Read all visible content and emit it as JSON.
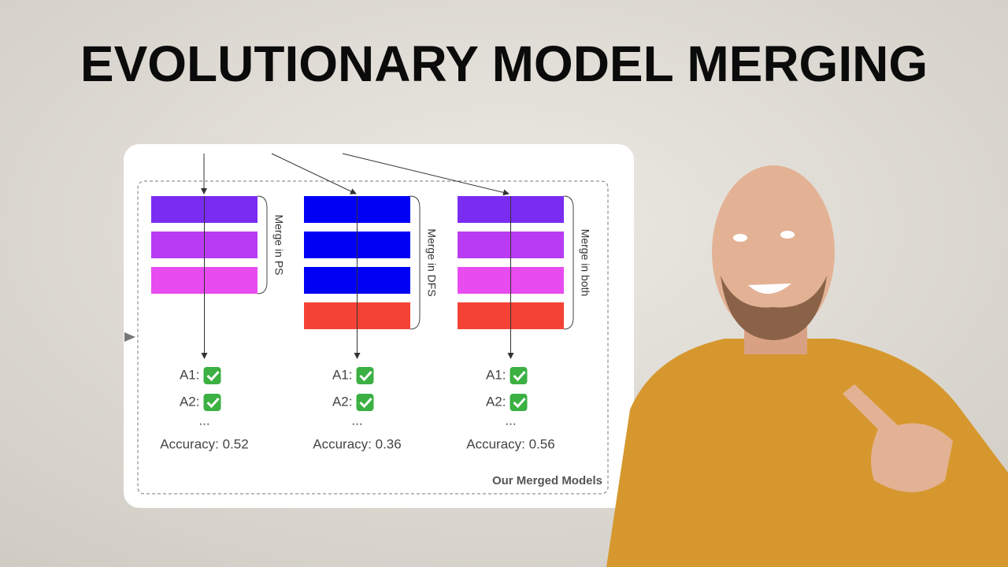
{
  "title": "EVOLUTIONARY MODEL MERGING",
  "diagram": {
    "columns": [
      {
        "label": "Merge in PS",
        "items": [
          "A1:",
          "A2:",
          "..."
        ],
        "accuracy": "Accuracy: 0.52"
      },
      {
        "label": "Merge in DFS",
        "items": [
          "A1:",
          "A2:",
          "..."
        ],
        "accuracy": "Accuracy: 0.36"
      },
      {
        "label": "Merge in both",
        "items": [
          "A1:",
          "A2:",
          "..."
        ],
        "accuracy": "Accuracy: 0.56"
      }
    ],
    "footer": "Our Merged Models"
  }
}
